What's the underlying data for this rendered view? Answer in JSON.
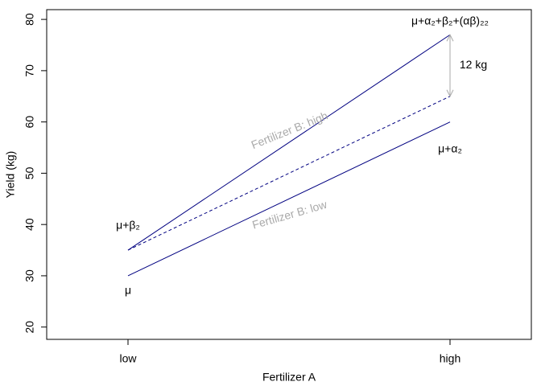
{
  "chart_data": {
    "type": "line",
    "x_label": "Fertilizer A",
    "y_label": "Yield (kg)",
    "categories": [
      "low",
      "high"
    ],
    "series": [
      {
        "name": "Fertilizer B: high",
        "color": "#000080",
        "values": [
          35,
          77
        ]
      },
      {
        "name": "Fertilizer B: low",
        "color": "#000080",
        "values": [
          30,
          60
        ]
      },
      {
        "color": "#000080",
        "values": [
          35,
          65
        ],
        "dashed": true
      }
    ],
    "series_label_color": "#aaaaaa",
    "ylim": [
      17.6,
      81.9
    ],
    "yticks": [
      20,
      30,
      40,
      50,
      60,
      70,
      80
    ],
    "annotations": [
      "μ",
      "μ+β₂",
      "μ+α₂",
      "μ+α₂+β₂+(αβ)₂₂"
    ],
    "arrow": {
      "label": "12 kg",
      "from": 65,
      "to": 77,
      "color": "#aaaaaa"
    }
  }
}
